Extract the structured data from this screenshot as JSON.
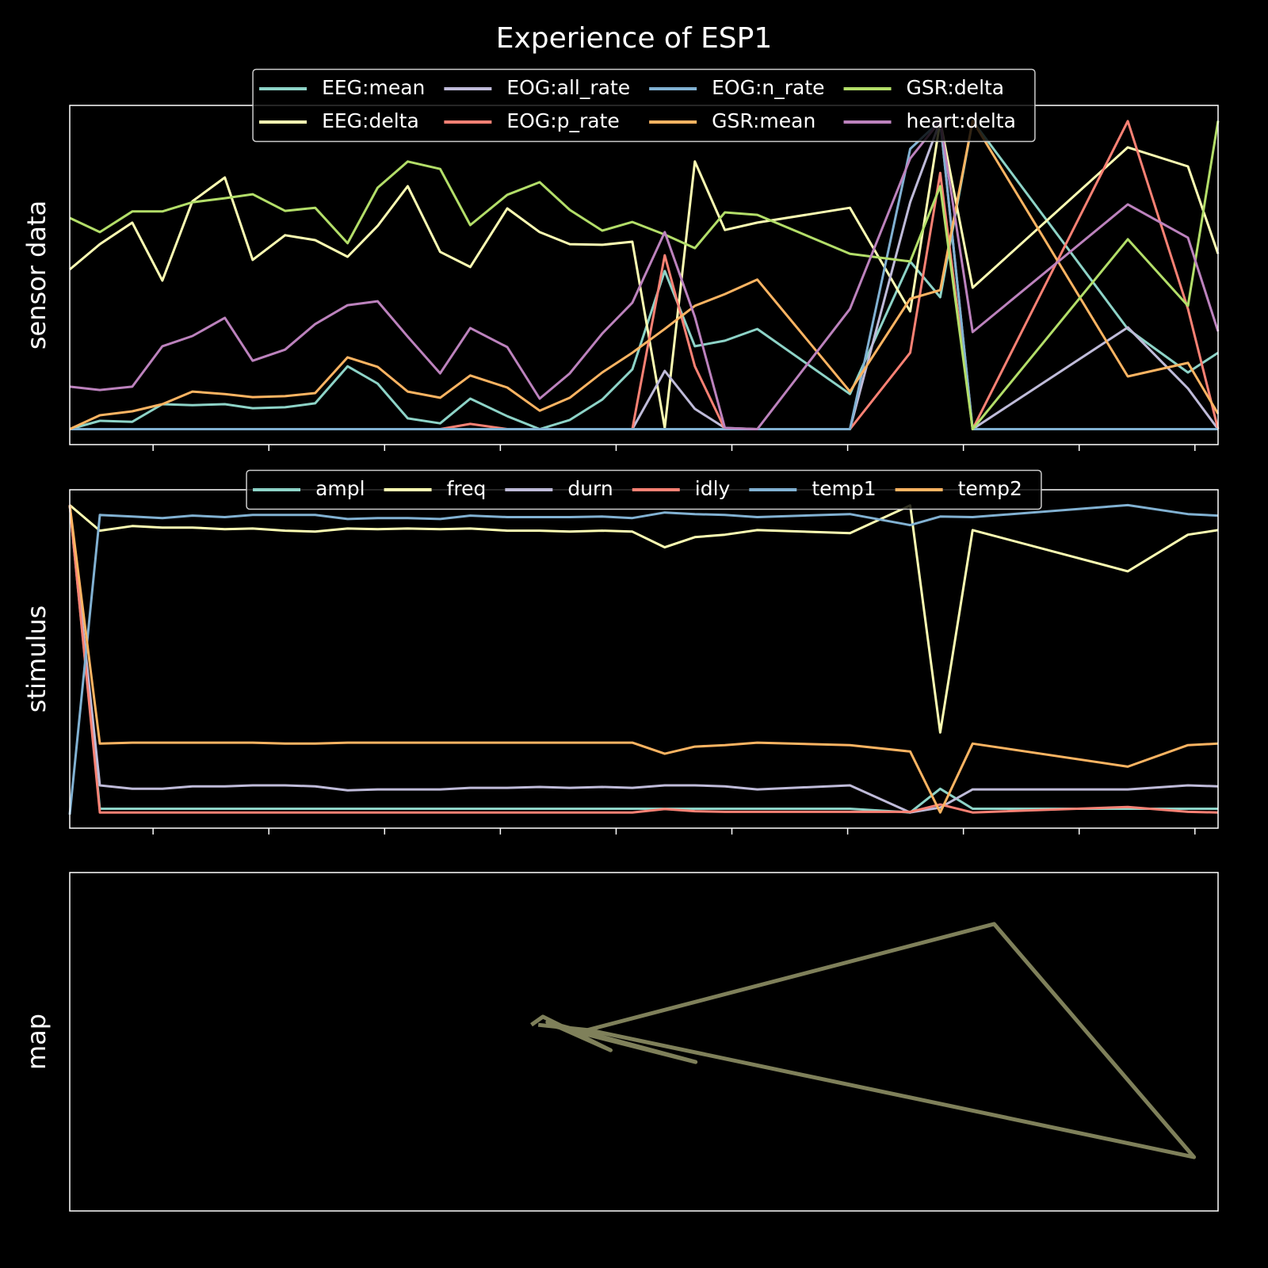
{
  "title": "Experience of ESP1",
  "chart_data": [
    {
      "type": "line",
      "ylabel": "sensor data",
      "legend": "upper center",
      "legend_columns": 4,
      "x": [
        1.4,
        2.7,
        4.1,
        5.4,
        6.7,
        8.1,
        9.3,
        10.7,
        12.0,
        13.4,
        14.7,
        16.0,
        17.4,
        18.7,
        20.3,
        21.7,
        23.0,
        24.4,
        25.7,
        27.1,
        28.4,
        29.7,
        31.1,
        35.1,
        37.7,
        39.0,
        40.4,
        47.1,
        49.7,
        51.0
      ],
      "xlim": [
        1.4,
        51.0
      ],
      "xticks": [
        5,
        10,
        15,
        20,
        25,
        30,
        35,
        40,
        45,
        50
      ],
      "ylim": [
        -0.05,
        1.05
      ],
      "series": [
        {
          "name": "EEG:mean",
          "color": "#8dd3c7",
          "values": [
            0,
            0.027,
            0.024,
            0.081,
            0.078,
            0.081,
            0.068,
            0.071,
            0.084,
            0.204,
            0.148,
            0.035,
            0.019,
            0.099,
            0.042,
            0,
            0.03,
            0.096,
            0.194,
            0.513,
            0.269,
            0.287,
            0.325,
            0.114,
            0.544,
            0.428,
            1.0,
            0.325,
            0.184,
            0.248
          ]
        },
        {
          "name": "EEG:delta",
          "color": "#feffb3",
          "values": [
            0.518,
            0.6,
            0.67,
            0.482,
            0.739,
            0.816,
            0.549,
            0.629,
            0.613,
            0.559,
            0.659,
            0.788,
            0.575,
            0.526,
            0.716,
            0.639,
            0.6,
            0.598,
            0.608,
            0.004,
            0.868,
            0.646,
            0.67,
            0.718,
            0.382,
            1.0,
            0.459,
            0.914,
            0.852,
            0.569
          ]
        },
        {
          "name": "EOG:all_rate",
          "color": "#bfbbd9",
          "values": [
            0,
            0,
            0,
            0,
            0,
            0,
            0,
            0,
            0,
            0,
            0,
            0,
            0,
            0,
            0,
            0,
            0,
            0,
            0,
            0.189,
            0.066,
            0.004,
            0,
            0,
            0.736,
            1.0,
            0,
            0.33,
            0.132,
            0
          ]
        },
        {
          "name": "EOG:p_rate",
          "color": "#fa8174",
          "values": [
            0,
            0,
            0,
            0,
            0,
            0,
            0,
            0,
            0,
            0,
            0,
            0,
            0,
            0.017,
            0,
            0,
            0,
            0,
            0,
            0.564,
            0.204,
            0,
            0,
            0,
            0.248,
            0.831,
            0,
            0.999,
            0.39,
            0
          ]
        },
        {
          "name": "EOG:n_rate",
          "color": "#81b1d2",
          "values": [
            0,
            0,
            0,
            0,
            0,
            0,
            0,
            0,
            0,
            0,
            0,
            0,
            0,
            0,
            0,
            0,
            0,
            0,
            0,
            0,
            0,
            0,
            0,
            0,
            0.909,
            1.0,
            0,
            0,
            0,
            0
          ]
        },
        {
          "name": "GSR:mean",
          "color": "#fdb462",
          "values": [
            0,
            0.045,
            0.058,
            0.081,
            0.122,
            0.114,
            0.104,
            0.107,
            0.117,
            0.233,
            0.202,
            0.122,
            0.102,
            0.174,
            0.135,
            0.06,
            0.102,
            0.184,
            0.248,
            0.325,
            0.4,
            0.438,
            0.485,
            0.122,
            0.423,
            0.451,
            1.0,
            0.171,
            0.215,
            0.05
          ]
        },
        {
          "name": "GSR:delta",
          "color": "#b3de69",
          "values": [
            0.685,
            0.639,
            0.706,
            0.706,
            0.736,
            0.749,
            0.762,
            0.708,
            0.718,
            0.603,
            0.783,
            0.868,
            0.844,
            0.662,
            0.76,
            0.801,
            0.711,
            0.644,
            0.672,
            0.631,
            0.587,
            0.703,
            0.695,
            0.569,
            0.544,
            0.788,
            0,
            0.616,
            0.4,
            1.0
          ]
        },
        {
          "name": "heart:delta",
          "color": "#bc82bd",
          "values": [
            0.138,
            0.127,
            0.138,
            0.269,
            0.302,
            0.361,
            0.222,
            0.258,
            0.341,
            0.402,
            0.415,
            0.3,
            0.181,
            0.328,
            0.266,
            0.099,
            0.181,
            0.31,
            0.41,
            0.639,
            0.364,
            0.004,
            0,
            0.39,
            0.878,
            1.0,
            0.315,
            0.729,
            0.621,
            0.317
          ]
        }
      ]
    },
    {
      "type": "line",
      "ylabel": "stimulus",
      "legend": "upper center",
      "legend_columns": 6,
      "x": [
        1.4,
        2.7,
        4.1,
        5.4,
        6.7,
        8.1,
        9.3,
        10.7,
        12.0,
        13.4,
        14.7,
        16.0,
        17.4,
        18.7,
        20.3,
        21.7,
        23.0,
        24.4,
        25.7,
        27.1,
        28.4,
        29.7,
        31.1,
        35.1,
        37.7,
        39.0,
        40.4,
        47.1,
        49.7,
        51.0
      ],
      "xlim": [
        1.4,
        51.0
      ],
      "xticks": [
        5,
        10,
        15,
        20,
        25,
        30,
        35,
        40,
        45,
        50
      ],
      "ylim": [
        -0.05,
        1.05
      ],
      "series": [
        {
          "name": "ampl",
          "color": "#8dd3c7",
          "values": [
            1.0,
            0.013,
            0.013,
            0.013,
            0.013,
            0.013,
            0.013,
            0.013,
            0.013,
            0.013,
            0.013,
            0.013,
            0.013,
            0.013,
            0.013,
            0.013,
            0.013,
            0.013,
            0.013,
            0.013,
            0.013,
            0.013,
            0.013,
            0.013,
            0.001,
            0.078,
            0.013,
            0.013,
            0.013,
            0.013
          ]
        },
        {
          "name": "freq",
          "color": "#feffb3",
          "values": [
            1.0,
            0.917,
            0.932,
            0.927,
            0.927,
            0.922,
            0.924,
            0.917,
            0.914,
            0.924,
            0.922,
            0.924,
            0.922,
            0.924,
            0.917,
            0.917,
            0.914,
            0.917,
            0.914,
            0.863,
            0.896,
            0.904,
            0.919,
            0.909,
            0.999,
            0.261,
            0.919,
            0.785,
            0.904,
            0.919
          ]
        },
        {
          "name": "durn",
          "color": "#bfbbd9",
          "values": [
            1.0,
            0.089,
            0.078,
            0.078,
            0.086,
            0.086,
            0.089,
            0.089,
            0.086,
            0.073,
            0.076,
            0.076,
            0.076,
            0.081,
            0.081,
            0.084,
            0.081,
            0.084,
            0.081,
            0.089,
            0.089,
            0.086,
            0.076,
            0.089,
            0.001,
            0.017,
            0.076,
            0.076,
            0.089,
            0.086
          ]
        },
        {
          "name": "idly",
          "color": "#fa8174",
          "values": [
            1.0,
            0.001,
            0.001,
            0.001,
            0.001,
            0.001,
            0.001,
            0.001,
            0.001,
            0.001,
            0.001,
            0.001,
            0.001,
            0.001,
            0.001,
            0.001,
            0.001,
            0.001,
            0.001,
            0.012,
            0.005,
            0.003,
            0.003,
            0.003,
            0.003,
            0.027,
            0.001,
            0.019,
            0.003,
            0.001
          ]
        },
        {
          "name": "temp1",
          "color": "#81b1d2",
          "values": [
            -0.006,
            0.968,
            0.963,
            0.958,
            0.966,
            0.961,
            0.968,
            0.968,
            0.968,
            0.955,
            0.958,
            0.958,
            0.955,
            0.966,
            0.961,
            0.961,
            0.961,
            0.963,
            0.958,
            0.976,
            0.971,
            0.968,
            0.961,
            0.971,
            0.935,
            0.963,
            0.961,
            1.0,
            0.971,
            0.966
          ]
        },
        {
          "name": "temp2",
          "color": "#fdb462",
          "values": [
            1.0,
            0.225,
            0.228,
            0.228,
            0.228,
            0.228,
            0.228,
            0.225,
            0.225,
            0.228,
            0.228,
            0.228,
            0.228,
            0.228,
            0.228,
            0.228,
            0.228,
            0.228,
            0.228,
            0.192,
            0.215,
            0.22,
            0.228,
            0.22,
            0.199,
            0.001,
            0.225,
            0.15,
            0.22,
            0.225
          ]
        }
      ]
    },
    {
      "type": "line",
      "ylabel": "map",
      "x": [
        0.402,
        0.412,
        0.471,
        0.416,
        0.545,
        0.422,
        0.45,
        0.805,
        0.979,
        0.453,
        0.408
      ],
      "xlim": [
        0,
        1
      ],
      "ylim": [
        0,
        1
      ],
      "series": [
        {
          "color": "#feffb3",
          "alpha": 0.5,
          "values": [
            0.55,
            0.574,
            0.475,
            0.558,
            0.44,
            0.546,
            0.534,
            0.848,
            0.159,
            0.534,
            0.55
          ]
        }
      ]
    }
  ]
}
